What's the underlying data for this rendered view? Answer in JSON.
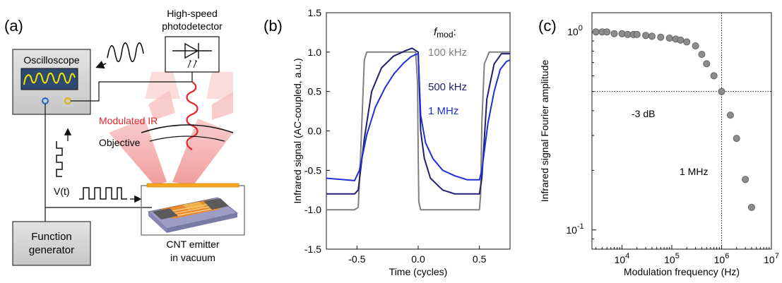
{
  "panel_a": {
    "label": "(a)",
    "oscilloscope": "Oscilloscope",
    "photodetector_line1": "High-speed",
    "photodetector_line2": "photodetector",
    "modulated_ir": "Modulated IR",
    "objective": "Objective",
    "voltage": "V(t)",
    "function_generator_line1": "Function",
    "function_generator_line2": "generator",
    "emitter_line1": "CNT emitter",
    "emitter_line2": "in vacuum",
    "colors": {
      "ir_red": "#e8252a",
      "beam_pink": "#f4a6a6",
      "box_gray": "#d9d9d9",
      "screen_blue": "#2e4a6e",
      "trace_yellow": "#f2e600"
    }
  },
  "panel_b": {
    "label": "(b)",
    "legend_title_f": "f",
    "legend_title_sub": "mod",
    "legend_title_colon": ":",
    "chart_data": {
      "type": "line",
      "xlabel": "Time (cycles)",
      "ylabel": "Infrared signal (AC-coupled, a.u.)",
      "xlim": [
        -0.75,
        0.75
      ],
      "ylim": [
        -1.5,
        1.5
      ],
      "xticks": [
        "-0.5",
        "0.0",
        "0.5"
      ],
      "yticks": [
        "-1.5",
        "-1.0",
        "-0.5",
        "0.0",
        "0.5",
        "1.0",
        "1.5"
      ],
      "legend_placement": "inside top-right",
      "series": [
        {
          "name": "100 kHz",
          "color": "#808080",
          "x": [
            -0.75,
            -0.52,
            -0.49,
            -0.47,
            -0.44,
            -0.42,
            -0.02,
            -0.005,
            0.0,
            0.005,
            0.02,
            0.5,
            0.51,
            0.52,
            0.54,
            0.58,
            0.75
          ],
          "y": [
            -1.0,
            -1.0,
            -0.97,
            -0.3,
            0.9,
            1.0,
            1.0,
            0.6,
            -0.3,
            -0.9,
            -1.0,
            -1.0,
            -0.8,
            0.1,
            0.85,
            1.0,
            1.0
          ]
        },
        {
          "name": "500 kHz",
          "color": "#1f1f6e",
          "x": [
            -0.75,
            -0.52,
            -0.49,
            -0.44,
            -0.38,
            -0.3,
            -0.2,
            -0.1,
            -0.05,
            0.0,
            0.02,
            0.05,
            0.1,
            0.2,
            0.3,
            0.4,
            0.5,
            0.52,
            0.56,
            0.62,
            0.68,
            0.75
          ],
          "y": [
            -0.8,
            -0.8,
            -0.75,
            -0.1,
            0.5,
            0.8,
            0.95,
            1.02,
            1.05,
            1.0,
            0.0,
            -0.35,
            -0.6,
            -0.75,
            -0.8,
            -0.8,
            -0.8,
            -0.6,
            0.4,
            0.85,
            0.98,
            0.98
          ]
        },
        {
          "name": "1 MHz",
          "color": "#1f2fd6",
          "x": [
            -0.75,
            -0.52,
            -0.48,
            -0.42,
            -0.35,
            -0.27,
            -0.2,
            -0.12,
            -0.06,
            -0.02,
            0.0,
            0.02,
            0.06,
            0.12,
            0.2,
            0.3,
            0.4,
            0.5,
            0.52,
            0.57,
            0.62,
            0.67,
            0.72,
            0.75
          ],
          "y": [
            -0.6,
            -0.63,
            -0.5,
            -0.05,
            0.3,
            0.55,
            0.72,
            0.86,
            0.94,
            0.97,
            0.98,
            0.2,
            -0.15,
            -0.35,
            -0.5,
            -0.57,
            -0.62,
            -0.62,
            -0.5,
            0.1,
            0.5,
            0.78,
            0.88,
            0.9
          ]
        }
      ]
    }
  },
  "panel_c": {
    "label": "(c)",
    "annotation_db": "-3 dB",
    "annotation_freq": "1 MHz",
    "chart_data": {
      "type": "scatter",
      "xlabel": "Modulation frequency (Hz)",
      "ylabel": "Infrared signal Fourier amplitude",
      "x_scale": "log",
      "y_scale": "log",
      "xlim": [
        2500,
        10000000
      ],
      "ylim": [
        0.08,
        1.25
      ],
      "xticks": [
        {
          "base": "10",
          "exp": "4",
          "value": 10000
        },
        {
          "base": "10",
          "exp": "5",
          "value": 100000
        },
        {
          "base": "10",
          "exp": "6",
          "value": 1000000
        },
        {
          "base": "10",
          "exp": "7",
          "value": 10000000
        }
      ],
      "yticks": [
        {
          "base": "10",
          "exp": "0",
          "value": 1
        },
        {
          "base": "10",
          "exp": "-1",
          "value": 0.1
        }
      ],
      "reference_lines": {
        "x": 1000000,
        "y": 0.5
      },
      "marker_color": "#8c8c8c",
      "points": [
        [
          3000,
          1.0
        ],
        [
          4000,
          1.0
        ],
        [
          5000,
          1.0
        ],
        [
          7000,
          0.98
        ],
        [
          10000,
          0.98
        ],
        [
          13000,
          0.97
        ],
        [
          17000,
          0.97
        ],
        [
          20000,
          0.97
        ],
        [
          30000,
          0.96
        ],
        [
          40000,
          0.95
        ],
        [
          60000,
          0.94
        ],
        [
          90000,
          0.93
        ],
        [
          120000,
          0.92
        ],
        [
          150000,
          0.91
        ],
        [
          200000,
          0.89
        ],
        [
          300000,
          0.85
        ],
        [
          400000,
          0.77
        ],
        [
          500000,
          0.69
        ],
        [
          700000,
          0.6
        ],
        [
          1000000,
          0.5
        ],
        [
          1500000,
          0.38
        ],
        [
          2000000,
          0.29
        ],
        [
          3000000,
          0.18
        ],
        [
          4000000,
          0.13
        ]
      ]
    }
  }
}
